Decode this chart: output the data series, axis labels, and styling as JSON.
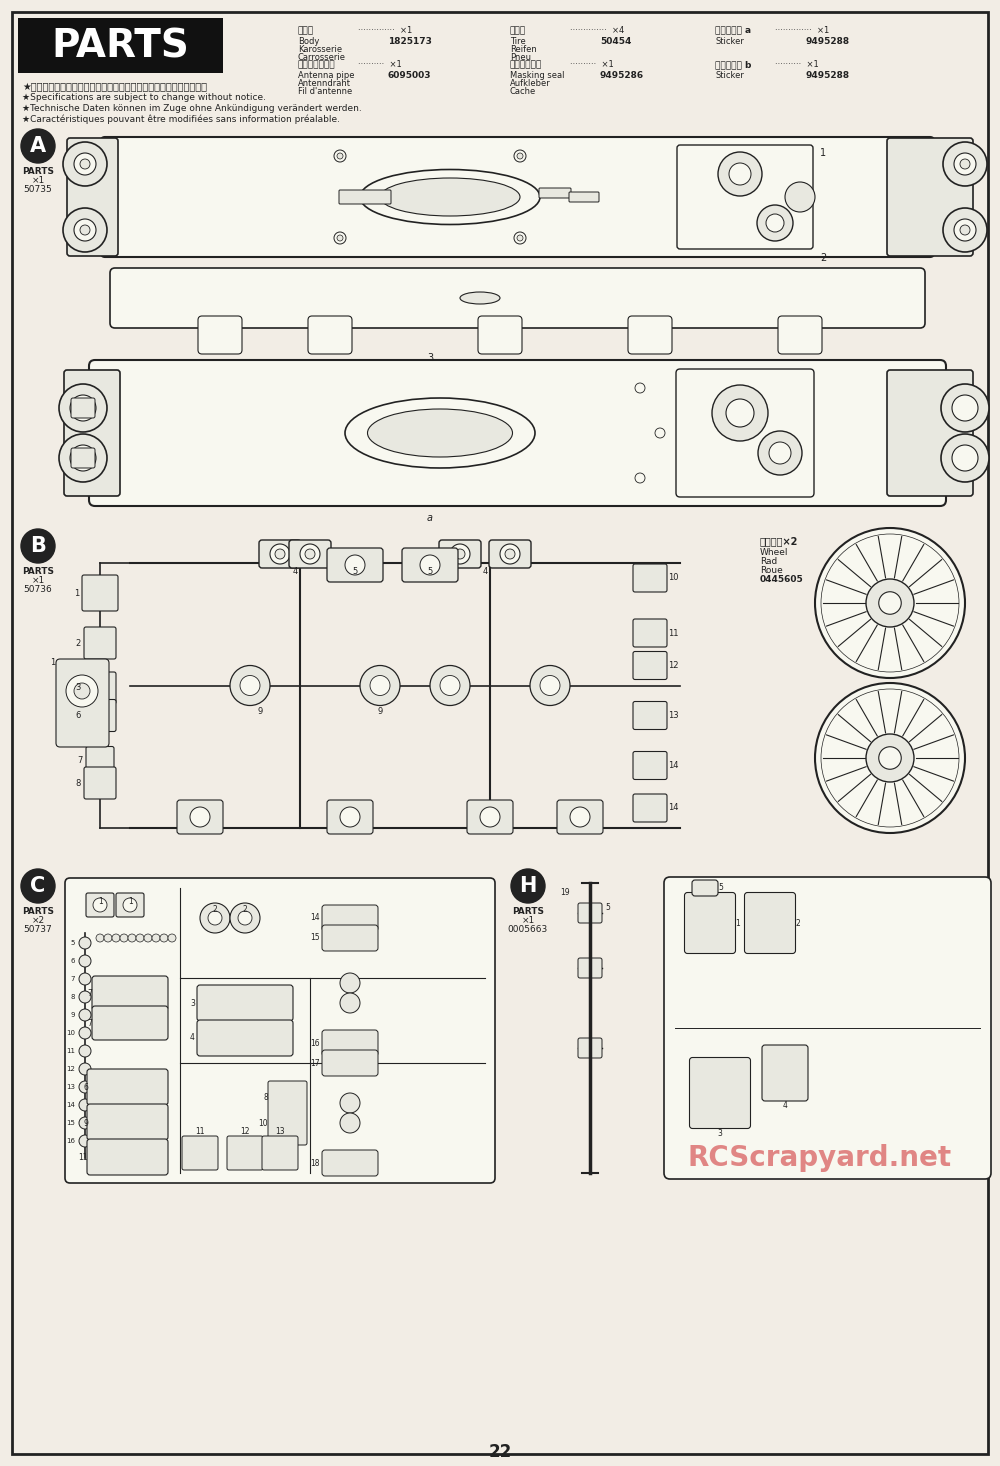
{
  "page_background": "#f2ede5",
  "border_color": "#222222",
  "header_bg": "#111111",
  "header_text": "PARTS",
  "header_text_color": "#ffffff",
  "page_number": "22",
  "watermark_text": "RCScrapyard.net",
  "watermark_color": "#d96060",
  "top_note_ja": "★製品改良のためキットは予告なく仕様を変更することがあります。",
  "top_notes_en": [
    "★Specifications are subject to change without notice.",
    "★Technische Daten können im Zuge ohne Ankündigung verändert werden.",
    "★Caractéristiques pouvant être modifiées sans information préalable."
  ],
  "line_color": "#222222",
  "light_fill": "#f8f8f0",
  "mid_fill": "#e8e8e0",
  "dark_fill": "#cccccc"
}
